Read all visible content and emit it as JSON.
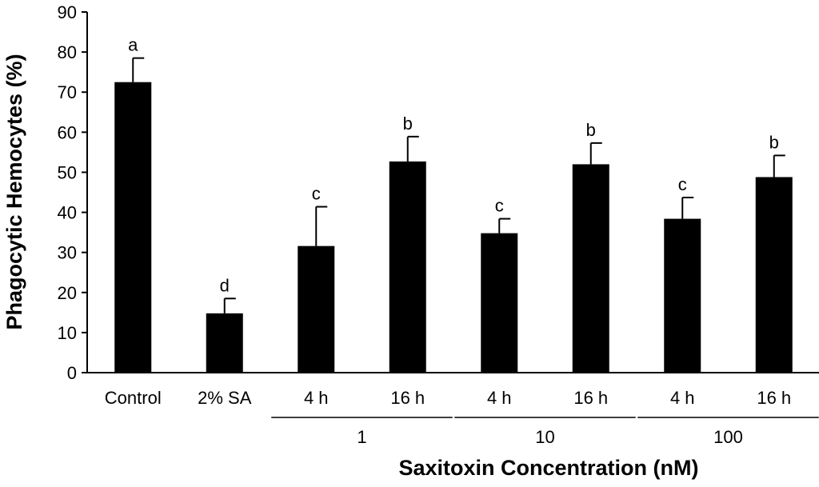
{
  "chart_data": {
    "type": "bar",
    "ylabel": "Phagocytic Hemocytes (%)",
    "xlabel": "Saxitoxin Concentration (nM)",
    "ylim": [
      0,
      90
    ],
    "yticks": [
      0,
      10,
      20,
      30,
      40,
      50,
      60,
      70,
      80,
      90
    ],
    "categories": [
      "Control",
      "2% SA",
      "4 h",
      "16 h",
      "4 h",
      "16 h",
      "4 h",
      "16 h"
    ],
    "values": [
      72.5,
      14.8,
      31.6,
      52.7,
      34.8,
      52.0,
      38.4,
      48.8
    ],
    "errors": [
      6.0,
      3.7,
      9.8,
      6.2,
      3.6,
      5.3,
      5.3,
      5.4
    ],
    "letters": [
      "a",
      "d",
      "c",
      "b",
      "c",
      "b",
      "c",
      "b"
    ],
    "groups": [
      {
        "label": "1",
        "from": 2,
        "to": 3
      },
      {
        "label": "10",
        "from": 4,
        "to": 5
      },
      {
        "label": "100",
        "from": 6,
        "to": 7
      }
    ],
    "stray_text": "a",
    "bar_color": "#000000",
    "grid": false
  }
}
